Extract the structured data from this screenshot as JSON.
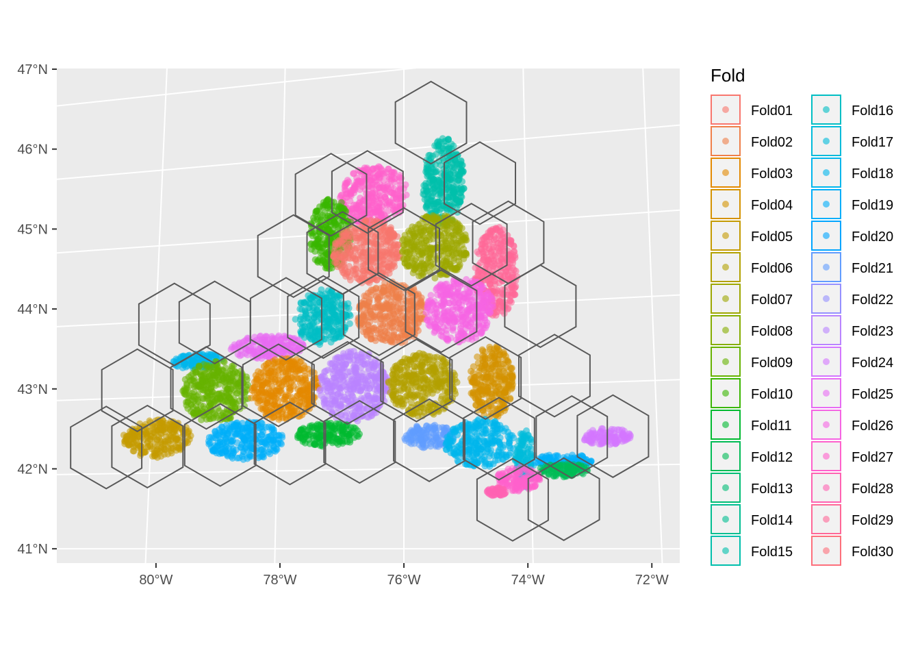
{
  "chart_data": {
    "type": "scatter",
    "description_note": "",
    "legend": {
      "title": "Fold",
      "placement": "right",
      "entries": [
        {
          "name": "Fold01",
          "color": "#F8766D"
        },
        {
          "name": "Fold02",
          "color": "#EF7F49"
        },
        {
          "name": "Fold03",
          "color": "#E38900"
        },
        {
          "name": "Fold04",
          "color": "#D49200"
        },
        {
          "name": "Fold05",
          "color": "#C49A00"
        },
        {
          "name": "Fold06",
          "color": "#B2A100"
        },
        {
          "name": "Fold07",
          "color": "#9DA700"
        },
        {
          "name": "Fold08",
          "color": "#85AD00"
        },
        {
          "name": "Fold09",
          "color": "#66B200"
        },
        {
          "name": "Fold10",
          "color": "#39B600"
        },
        {
          "name": "Fold11",
          "color": "#00B92F"
        },
        {
          "name": "Fold12",
          "color": "#00BB55"
        },
        {
          "name": "Fold13",
          "color": "#00BD74"
        },
        {
          "name": "Fold14",
          "color": "#00BE91"
        },
        {
          "name": "Fold15",
          "color": "#00BFAC"
        },
        {
          "name": "Fold16",
          "color": "#00BEC4"
        },
        {
          "name": "Fold17",
          "color": "#00BBDA"
        },
        {
          "name": "Fold18",
          "color": "#00B6EC"
        },
        {
          "name": "Fold19",
          "color": "#00AEFA"
        },
        {
          "name": "Fold20",
          "color": "#00A5FF"
        },
        {
          "name": "Fold21",
          "color": "#619CFF"
        },
        {
          "name": "Fold22",
          "color": "#9590FF"
        },
        {
          "name": "Fold23",
          "color": "#B983FF"
        },
        {
          "name": "Fold24",
          "color": "#D376FF"
        },
        {
          "name": "Fold25",
          "color": "#E76BF3"
        },
        {
          "name": "Fold26",
          "color": "#F564E3"
        },
        {
          "name": "Fold27",
          "color": "#FF61CC"
        },
        {
          "name": "Fold28",
          "color": "#FF62B2"
        },
        {
          "name": "Fold29",
          "color": "#FF6797"
        },
        {
          "name": "Fold30",
          "color": "#FD6F7B"
        }
      ]
    },
    "x_axis": {
      "ticks": [
        -80,
        -78,
        -76,
        -74,
        -72
      ],
      "tick_labels": [
        "80°W",
        "78°W",
        "76°W",
        "74°W",
        "72°W"
      ],
      "range": [
        -81.6,
        -71.55
      ]
    },
    "y_axis": {
      "ticks": [
        41,
        42,
        43,
        44,
        45,
        46,
        47
      ],
      "tick_labels": [
        "41°N",
        "42°N",
        "43°N",
        "44°N",
        "45°N",
        "46°N",
        "47°N"
      ],
      "range": [
        40.83,
        47.0
      ]
    },
    "grid": true,
    "hex_centers": [
      [
        -75.55,
        46.3
      ],
      [
        -77.2,
        45.5
      ],
      [
        -76.6,
        45.5
      ],
      [
        -74.75,
        45.5
      ],
      [
        -77.8,
        44.75
      ],
      [
        -77.0,
        44.75
      ],
      [
        -76.0,
        44.75
      ],
      [
        -74.9,
        44.75
      ],
      [
        -74.3,
        44.75
      ],
      [
        -79.7,
        43.95
      ],
      [
        -79.05,
        43.95
      ],
      [
        -77.9,
        43.95
      ],
      [
        -77.3,
        43.95
      ],
      [
        -76.4,
        43.95
      ],
      [
        -75.4,
        43.95
      ],
      [
        -73.8,
        43.95
      ],
      [
        -80.25,
        43.1
      ],
      [
        -79.15,
        43.1
      ],
      [
        -78.0,
        43.1
      ],
      [
        -76.9,
        43.1
      ],
      [
        -75.8,
        43.1
      ],
      [
        -74.7,
        43.1
      ],
      [
        -73.6,
        43.1
      ],
      [
        -80.7,
        42.35
      ],
      [
        -80.05,
        42.35
      ],
      [
        -78.9,
        42.35
      ],
      [
        -77.8,
        42.35
      ],
      [
        -76.7,
        42.35
      ],
      [
        -75.6,
        42.35
      ],
      [
        -74.5,
        42.35
      ],
      [
        -73.35,
        42.35
      ],
      [
        -72.7,
        42.35
      ],
      [
        -74.3,
        41.6
      ],
      [
        -73.5,
        41.6
      ]
    ],
    "fold_regions": [
      {
        "fold": "Fold27",
        "lon": -76.5,
        "lat": 45.45,
        "rx": 0.55,
        "ry": 0.38
      },
      {
        "fold": "Fold15",
        "lon": -75.35,
        "lat": 45.55,
        "rx": 0.35,
        "ry": 0.55
      },
      {
        "fold": "Fold10",
        "lon": -77.2,
        "lat": 45.0,
        "rx": 0.35,
        "ry": 0.45
      },
      {
        "fold": "Fold01",
        "lon": -76.6,
        "lat": 44.75,
        "rx": 0.55,
        "ry": 0.4
      },
      {
        "fold": "Fold07",
        "lon": -75.5,
        "lat": 44.75,
        "rx": 0.55,
        "ry": 0.4
      },
      {
        "fold": "Fold29",
        "lon": -74.5,
        "lat": 44.4,
        "rx": 0.35,
        "ry": 0.55
      },
      {
        "fold": "Fold16",
        "lon": -77.3,
        "lat": 43.95,
        "rx": 0.45,
        "ry": 0.35
      },
      {
        "fold": "Fold02",
        "lon": -76.2,
        "lat": 43.95,
        "rx": 0.55,
        "ry": 0.4
      },
      {
        "fold": "Fold26",
        "lon": -75.1,
        "lat": 43.95,
        "rx": 0.55,
        "ry": 0.4
      },
      {
        "fold": "Fold25",
        "lon": -78.2,
        "lat": 43.6,
        "rx": 0.6,
        "ry": 0.15
      },
      {
        "fold": "Fold18",
        "lon": -79.3,
        "lat": 43.45,
        "rx": 0.4,
        "ry": 0.1
      },
      {
        "fold": "Fold09",
        "lon": -79.0,
        "lat": 43.05,
        "rx": 0.55,
        "ry": 0.4
      },
      {
        "fold": "Fold03",
        "lon": -77.9,
        "lat": 43.05,
        "rx": 0.55,
        "ry": 0.4
      },
      {
        "fold": "Fold23",
        "lon": -76.8,
        "lat": 43.05,
        "rx": 0.55,
        "ry": 0.45
      },
      {
        "fold": "Fold06",
        "lon": -75.7,
        "lat": 43.05,
        "rx": 0.55,
        "ry": 0.4
      },
      {
        "fold": "Fold04",
        "lon": -74.6,
        "lat": 43.05,
        "rx": 0.35,
        "ry": 0.45
      },
      {
        "fold": "Fold05",
        "lon": -79.9,
        "lat": 42.45,
        "rx": 0.55,
        "ry": 0.25
      },
      {
        "fold": "Fold19",
        "lon": -78.5,
        "lat": 42.4,
        "rx": 0.6,
        "ry": 0.25
      },
      {
        "fold": "Fold11",
        "lon": -77.2,
        "lat": 42.45,
        "rx": 0.5,
        "ry": 0.15
      },
      {
        "fold": "Fold21",
        "lon": -75.6,
        "lat": 42.4,
        "rx": 0.4,
        "ry": 0.15
      },
      {
        "fold": "Fold18",
        "lon": -74.8,
        "lat": 42.3,
        "rx": 0.55,
        "ry": 0.3
      },
      {
        "fold": "Fold17",
        "lon": -74.1,
        "lat": 42.1,
        "rx": 0.15,
        "ry": 0.35
      },
      {
        "fold": "Fold19",
        "lon": -73.5,
        "lat": 42.05,
        "rx": 0.45,
        "ry": 0.1
      },
      {
        "fold": "Fold12",
        "lon": -73.5,
        "lat": 41.95,
        "rx": 0.4,
        "ry": 0.08
      },
      {
        "fold": "Fold24",
        "lon": -72.8,
        "lat": 42.35,
        "rx": 0.4,
        "ry": 0.1
      },
      {
        "fold": "Fold27",
        "lon": -74.2,
        "lat": 41.85,
        "rx": 0.35,
        "ry": 0.15
      },
      {
        "fold": "Fold28",
        "lon": -74.55,
        "lat": 41.7,
        "rx": 0.15,
        "ry": 0.05
      }
    ]
  }
}
